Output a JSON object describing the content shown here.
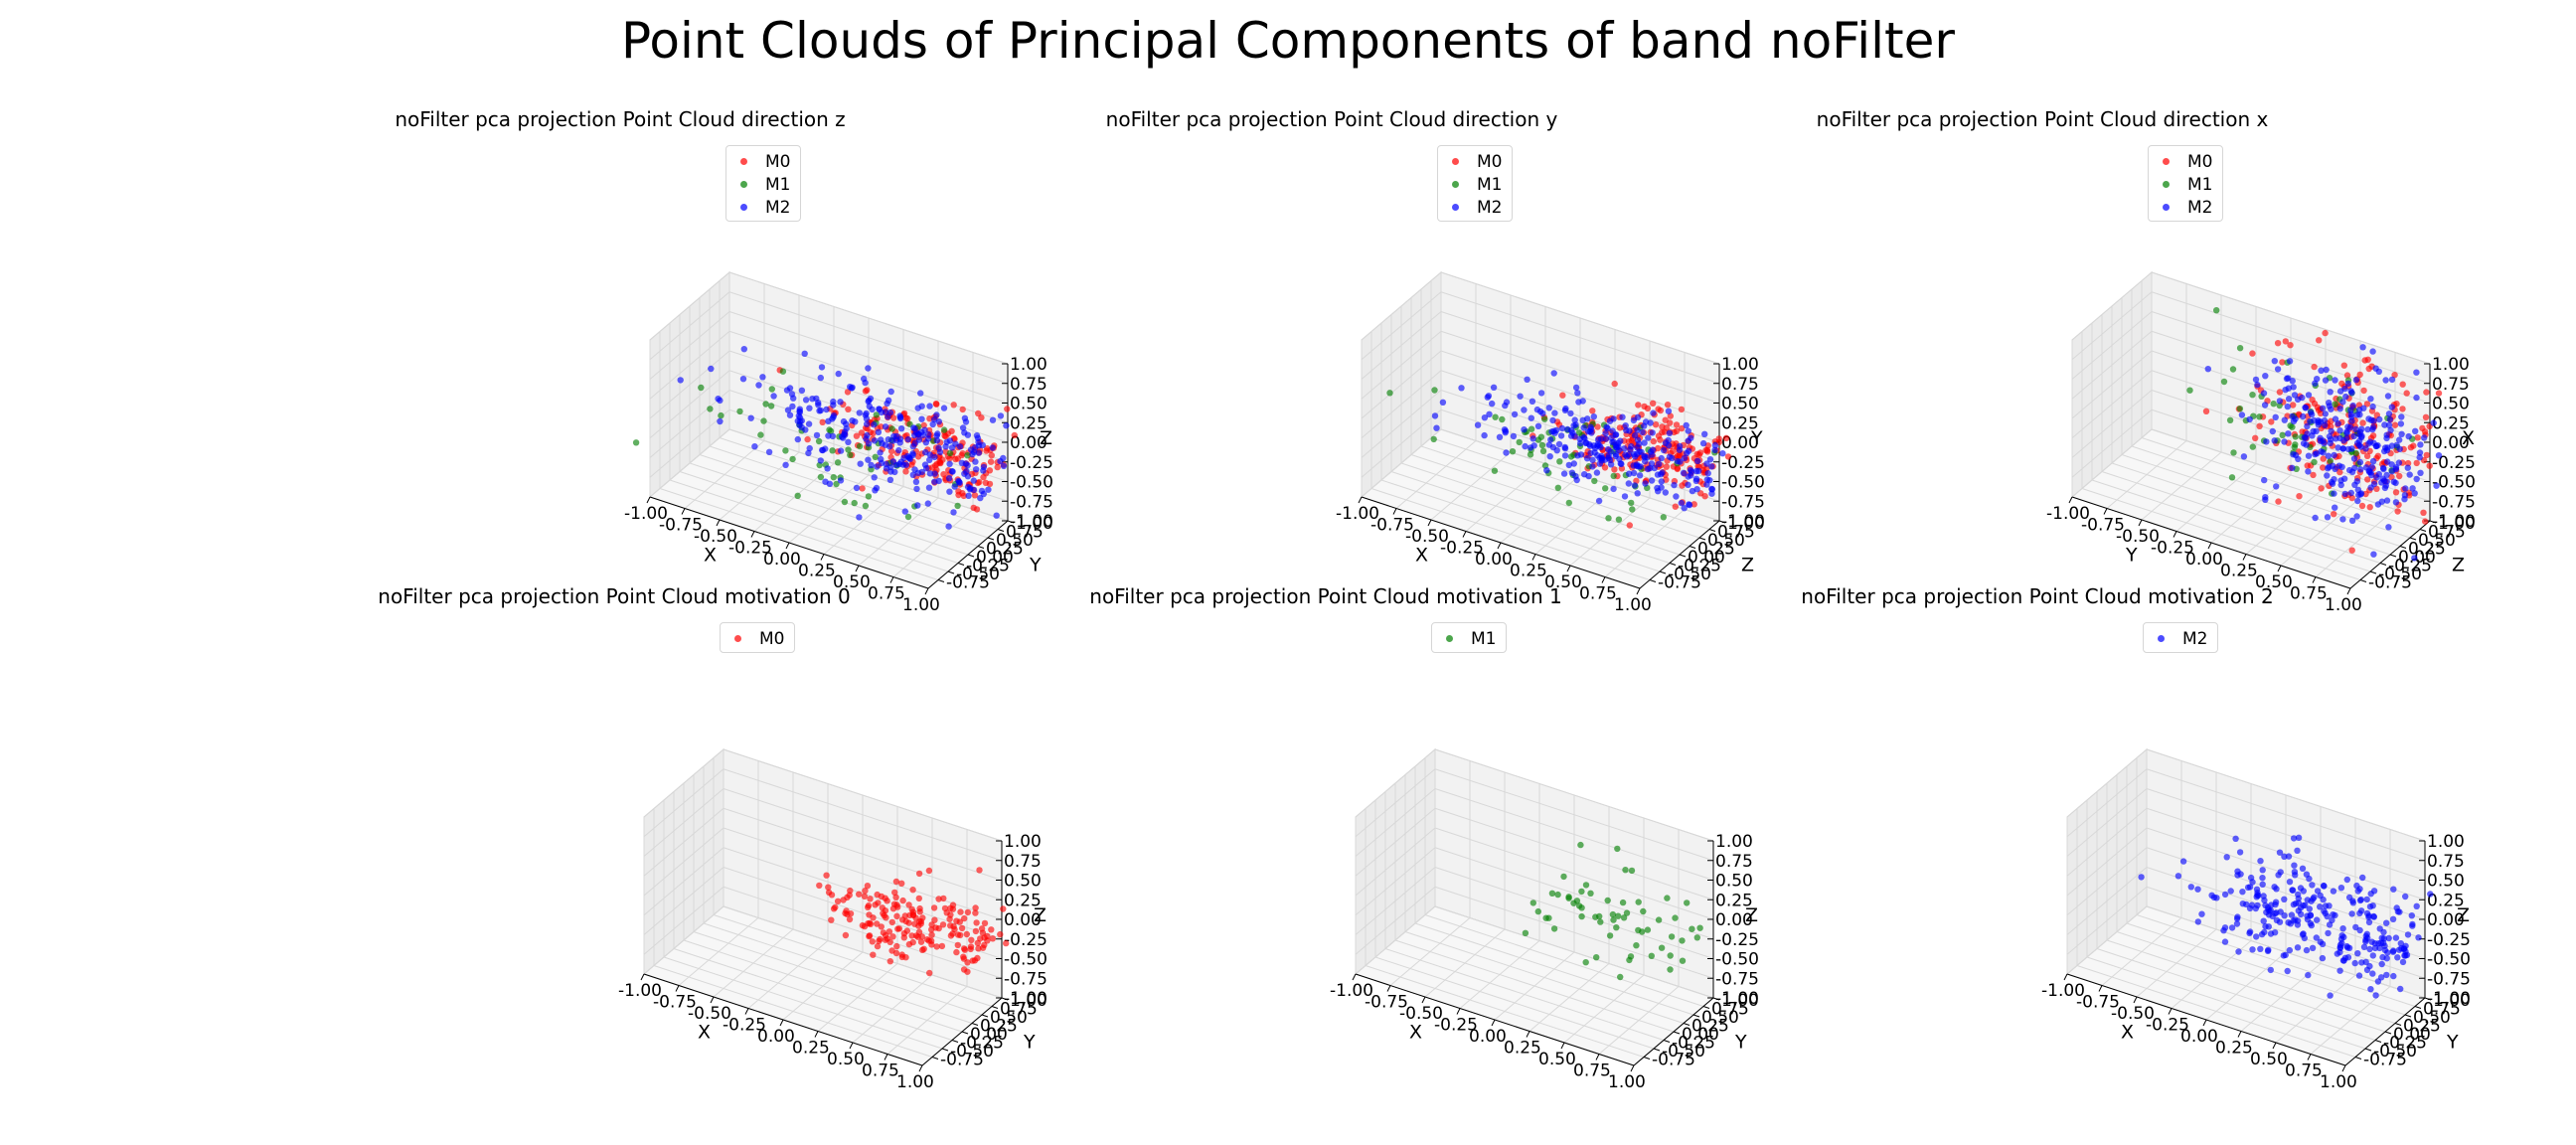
{
  "figure_title": "Point Clouds of Principal Components of band noFilter",
  "colors": {
    "M0": "#ff0000",
    "M1": "#008000",
    "M2": "#0000ff"
  },
  "chart_data": [
    {
      "type": "scatter",
      "title": "noFilter pca projection Point Cloud direction z",
      "legend": [
        "M0",
        "M1",
        "M2"
      ],
      "legend_position": "top-right",
      "xlabel": "X",
      "ylabel": "Y",
      "zlabel": "Z",
      "xlim": [
        -1,
        1
      ],
      "ylim": [
        -1,
        1
      ],
      "zlim": [
        -1,
        1
      ],
      "xticks": [
        "-1.00",
        "-0.75",
        "-0.50",
        "-0.25",
        "0.00",
        "0.25",
        "0.50",
        "0.75",
        "1.00"
      ],
      "yticks": [
        "-0.75",
        "-0.50",
        "-0.25",
        "0.00",
        "0.25",
        "0.50",
        "0.75",
        "1.00"
      ],
      "zticks": [
        "-1.00",
        "-0.75",
        "-0.50",
        "-0.25",
        "0.00",
        "0.25",
        "0.50",
        "0.75",
        "1.00"
      ],
      "zlabel_hidden": false,
      "series": [
        {
          "name": "M0",
          "color": "#ff0000",
          "count": 190,
          "center": [
            0.6,
            0.3,
            0.0
          ],
          "spread": [
            0.35,
            0.3,
            0.2
          ]
        },
        {
          "name": "M1",
          "color": "#008000",
          "count": 55,
          "center": [
            0.1,
            0.0,
            -0.2
          ],
          "spread": [
            0.55,
            0.4,
            0.3
          ]
        },
        {
          "name": "M2",
          "color": "#0000ff",
          "count": 270,
          "center": [
            0.4,
            0.2,
            0.0
          ],
          "spread": [
            0.5,
            0.35,
            0.3
          ]
        }
      ]
    },
    {
      "type": "scatter",
      "title": "noFilter pca projection Point Cloud direction y",
      "legend": [
        "M0",
        "M1",
        "M2"
      ],
      "legend_position": "top-right",
      "xlabel": "X",
      "ylabel": "Z",
      "zlabel": "Y",
      "xlim": [
        -1,
        1
      ],
      "ylim": [
        -1,
        1
      ],
      "zlim": [
        -1,
        1
      ],
      "xticks": [
        "-1.00",
        "-0.75",
        "-0.50",
        "-0.25",
        "0.00",
        "0.25",
        "0.50",
        "0.75",
        "1.00"
      ],
      "yticks": [
        "-0.75",
        "-0.50",
        "-0.25",
        "0.00",
        "0.25",
        "0.50",
        "0.75",
        "1.00"
      ],
      "zticks": [
        "-1.00",
        "-0.75",
        "-0.50",
        "-0.25",
        "0.00",
        "0.25",
        "0.50",
        "0.75",
        "1.00"
      ],
      "zlabel_hidden": false,
      "series": [
        {
          "name": "M0",
          "color": "#ff0000",
          "count": 190,
          "center": [
            0.65,
            0.4,
            -0.05
          ],
          "spread": [
            0.3,
            0.25,
            0.2
          ]
        },
        {
          "name": "M1",
          "color": "#008000",
          "count": 55,
          "center": [
            0.2,
            0.2,
            -0.25
          ],
          "spread": [
            0.45,
            0.3,
            0.25
          ]
        },
        {
          "name": "M2",
          "color": "#0000ff",
          "count": 270,
          "center": [
            0.45,
            0.3,
            -0.1
          ],
          "spread": [
            0.45,
            0.3,
            0.25
          ]
        }
      ]
    },
    {
      "type": "scatter",
      "title": "noFilter pca projection Point Cloud direction x",
      "legend": [
        "M0",
        "M1",
        "M2"
      ],
      "legend_position": "top-right",
      "xlabel": "Y",
      "ylabel": "Z",
      "zlabel": "X",
      "xlim": [
        -1,
        1
      ],
      "ylim": [
        -1,
        1
      ],
      "zlim": [
        -1,
        1
      ],
      "xticks": [
        "-1.00",
        "-0.75",
        "-0.50",
        "-0.25",
        "0.00",
        "0.25",
        "0.50",
        "0.75",
        "1.00"
      ],
      "yticks": [
        "-0.75",
        "-0.50",
        "-0.25",
        "0.00",
        "0.25",
        "0.50",
        "0.75",
        "1.00"
      ],
      "zticks": [
        "-1.00",
        "-0.75",
        "-0.50",
        "-0.25",
        "0.00",
        "0.25",
        "0.50",
        "0.75",
        "1.00"
      ],
      "zlabel_hidden": false,
      "series": [
        {
          "name": "M0",
          "color": "#ff0000",
          "count": 190,
          "center": [
            0.55,
            0.55,
            0.1
          ],
          "spread": [
            0.3,
            0.3,
            0.45
          ]
        },
        {
          "name": "M1",
          "color": "#008000",
          "count": 55,
          "center": [
            0.3,
            0.3,
            0.2
          ],
          "spread": [
            0.35,
            0.35,
            0.35
          ]
        },
        {
          "name": "M2",
          "color": "#0000ff",
          "count": 270,
          "center": [
            0.55,
            0.5,
            0.0
          ],
          "spread": [
            0.3,
            0.3,
            0.45
          ]
        }
      ]
    },
    {
      "type": "scatter",
      "title": "noFilter pca projection Point Cloud motivation 0",
      "legend": [
        "M0"
      ],
      "legend_position": "top-right",
      "xlabel": "X",
      "ylabel": "Y",
      "zlabel": "Z",
      "xlim": [
        -1,
        1
      ],
      "ylim": [
        -1,
        1
      ],
      "zlim": [
        -1,
        1
      ],
      "xticks": [
        "-1.00",
        "-0.75",
        "-0.50",
        "-0.25",
        "0.00",
        "0.25",
        "0.50",
        "0.75",
        "1.00"
      ],
      "yticks": [
        "-0.75",
        "-0.50",
        "-0.25",
        "0.00",
        "0.25",
        "0.50",
        "0.75",
        "1.00"
      ],
      "zticks": [
        "-1.00",
        "-0.75",
        "-0.50",
        "-0.25",
        "0.00",
        "0.25",
        "0.50",
        "0.75",
        "1.00"
      ],
      "zlabel_hidden": false,
      "series": [
        {
          "name": "M0",
          "color": "#ff0000",
          "count": 190,
          "center": [
            0.6,
            0.3,
            0.0
          ],
          "spread": [
            0.35,
            0.3,
            0.2
          ]
        }
      ]
    },
    {
      "type": "scatter",
      "title": "noFilter pca projection Point Cloud motivation 1",
      "legend": [
        "M1"
      ],
      "legend_position": "top-right",
      "xlabel": "X",
      "ylabel": "Y",
      "zlabel": "Z",
      "xlim": [
        -1,
        1
      ],
      "ylim": [
        -1,
        1
      ],
      "zlim": [
        -1,
        1
      ],
      "xticks": [
        "-1.00",
        "-0.75",
        "-0.50",
        "-0.25",
        "0.00",
        "0.25",
        "0.50",
        "0.75",
        "1.00"
      ],
      "yticks": [
        "-0.75",
        "-0.50",
        "-0.25",
        "0.00",
        "0.25",
        "0.50",
        "0.75",
        "1.00"
      ],
      "zticks": [
        "-1.00",
        "-0.75",
        "-0.50",
        "-0.25",
        "0.00",
        "0.25",
        "0.50",
        "0.75",
        "1.00"
      ],
      "zlabel_hidden": false,
      "series": [
        {
          "name": "M1",
          "color": "#008000",
          "count": 60,
          "center": [
            0.45,
            0.3,
            0.0
          ],
          "spread": [
            0.4,
            0.3,
            0.25
          ]
        }
      ]
    },
    {
      "type": "scatter",
      "title": "noFilter pca projection Point Cloud motivation 2",
      "legend": [
        "M2"
      ],
      "legend_position": "top-right",
      "xlabel": "X",
      "ylabel": "Y",
      "zlabel": "Z",
      "xlim": [
        -1,
        1
      ],
      "ylim": [
        -1,
        1
      ],
      "zlim": [
        -1,
        1
      ],
      "xticks": [
        "-1.00",
        "-0.75",
        "-0.50",
        "-0.25",
        "0.00",
        "0.25",
        "0.50",
        "0.75",
        "1.00"
      ],
      "yticks": [
        "-0.75",
        "-0.50",
        "-0.25",
        "0.00",
        "0.25",
        "0.50",
        "0.75",
        "1.00"
      ],
      "zticks": [
        "-1.00",
        "-0.75",
        "-0.50",
        "-0.25",
        "0.00",
        "0.25",
        "0.50",
        "0.75",
        "1.00"
      ],
      "zlabel_hidden": false,
      "series": [
        {
          "name": "M2",
          "color": "#0000ff",
          "count": 280,
          "center": [
            0.45,
            0.25,
            0.0
          ],
          "spread": [
            0.45,
            0.35,
            0.25
          ]
        }
      ]
    }
  ]
}
